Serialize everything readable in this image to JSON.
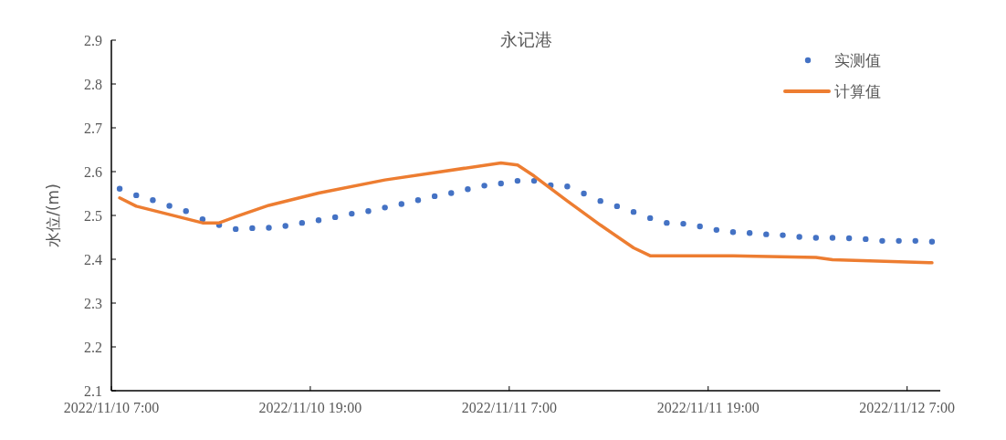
{
  "chart_data": {
    "type": "line",
    "title": "永记港",
    "ylabel": "水位/(m)",
    "xlim": [
      "2022-11-10T07:00",
      "2022-11-12T09:00"
    ],
    "xticks": [
      {
        "value": "2022-11-10T07:00",
        "label": "2022/11/10 7:00"
      },
      {
        "value": "2022-11-10T19:00",
        "label": "2022/11/10 19:00"
      },
      {
        "value": "2022-11-11T07:00",
        "label": "2022/11/11 7:00"
      },
      {
        "value": "2022-11-11T19:00",
        "label": "2022/11/11 19:00"
      },
      {
        "value": "2022-11-12T07:00",
        "label": "2022/11/12 7:00"
      }
    ],
    "ylim": [
      2.1,
      2.9
    ],
    "yticks": [
      2.1,
      2.2,
      2.3,
      2.4,
      2.5,
      2.6,
      2.7,
      2.8,
      2.9
    ],
    "grid": false,
    "legend": "top right",
    "series": [
      {
        "name": "实测值",
        "type": "scatter",
        "marker": "circle",
        "color": "#4472c4",
        "x": [
          "2022-11-10T07:30",
          "2022-11-10T08:30",
          "2022-11-10T09:30",
          "2022-11-10T10:30",
          "2022-11-10T11:30",
          "2022-11-10T12:30",
          "2022-11-10T13:30",
          "2022-11-10T14:30",
          "2022-11-10T15:30",
          "2022-11-10T16:30",
          "2022-11-10T17:30",
          "2022-11-10T18:30",
          "2022-11-10T19:30",
          "2022-11-10T20:30",
          "2022-11-10T21:30",
          "2022-11-10T22:30",
          "2022-11-10T23:30",
          "2022-11-11T00:30",
          "2022-11-11T01:30",
          "2022-11-11T02:30",
          "2022-11-11T03:30",
          "2022-11-11T04:30",
          "2022-11-11T05:30",
          "2022-11-11T06:30",
          "2022-11-11T07:30",
          "2022-11-11T08:30",
          "2022-11-11T09:30",
          "2022-11-11T10:30",
          "2022-11-11T11:30",
          "2022-11-11T12:30",
          "2022-11-11T13:30",
          "2022-11-11T14:30",
          "2022-11-11T15:30",
          "2022-11-11T16:30",
          "2022-11-11T17:30",
          "2022-11-11T18:30",
          "2022-11-11T19:30",
          "2022-11-11T20:30",
          "2022-11-11T21:30",
          "2022-11-11T22:30",
          "2022-11-11T23:30",
          "2022-11-12T00:30",
          "2022-11-12T01:30",
          "2022-11-12T02:30",
          "2022-11-12T03:30",
          "2022-11-12T04:30",
          "2022-11-12T05:30",
          "2022-11-12T06:30",
          "2022-11-12T07:30",
          "2022-11-12T08:30"
        ],
        "values": [
          2.561,
          2.546,
          2.535,
          2.522,
          2.51,
          2.491,
          2.478,
          2.469,
          2.471,
          2.472,
          2.476,
          2.483,
          2.489,
          2.496,
          2.504,
          2.51,
          2.518,
          2.526,
          2.535,
          2.544,
          2.551,
          2.56,
          2.568,
          2.573,
          2.579,
          2.579,
          2.569,
          2.566,
          2.55,
          2.533,
          2.521,
          2.508,
          2.494,
          2.483,
          2.481,
          2.475,
          2.467,
          2.462,
          2.46,
          2.457,
          2.455,
          2.451,
          2.449,
          2.449,
          2.448,
          2.446,
          2.442,
          2.442,
          2.442,
          2.44
        ]
      },
      {
        "name": "计算值",
        "line_style": "solid",
        "color": "#ed7d31",
        "x": [
          "2022-11-10T07:30",
          "2022-11-10T08:30",
          "2022-11-10T12:30",
          "2022-11-10T13:30",
          "2022-11-10T14:30",
          "2022-11-10T16:30",
          "2022-11-10T19:30",
          "2022-11-10T23:30",
          "2022-11-11T06:30",
          "2022-11-11T07:30",
          "2022-11-11T08:30",
          "2022-11-11T10:30",
          "2022-11-11T12:30",
          "2022-11-11T14:30",
          "2022-11-11T15:30",
          "2022-11-11T20:30",
          "2022-11-12T01:30",
          "2022-11-12T02:30",
          "2022-11-12T08:30"
        ],
        "values": [
          2.54,
          2.521,
          2.483,
          2.483,
          2.497,
          2.523,
          2.551,
          2.581,
          2.62,
          2.615,
          2.59,
          2.533,
          2.478,
          2.426,
          2.408,
          2.408,
          2.404,
          2.399,
          2.392
        ]
      }
    ]
  }
}
